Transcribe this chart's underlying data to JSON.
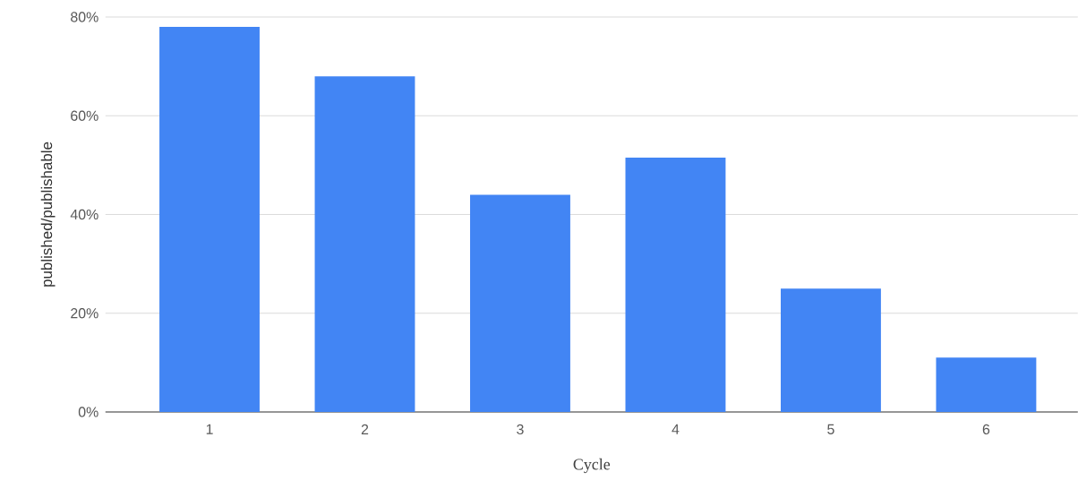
{
  "chart_data": {
    "type": "bar",
    "xlabel": "Cycle",
    "ylabel": "published/publishable",
    "categories": [
      "1",
      "2",
      "3",
      "4",
      "5",
      "6"
    ],
    "values": [
      78,
      68,
      44,
      51.5,
      25,
      11
    ],
    "color": "#4285f4",
    "ylim": [
      0,
      80
    ],
    "yticks": [
      {
        "value": 0,
        "label": "0%"
      },
      {
        "value": 20,
        "label": "20%"
      },
      {
        "value": 40,
        "label": "40%"
      },
      {
        "value": 60,
        "label": "60%"
      },
      {
        "value": 80,
        "label": "80%"
      }
    ],
    "grid": "y"
  }
}
